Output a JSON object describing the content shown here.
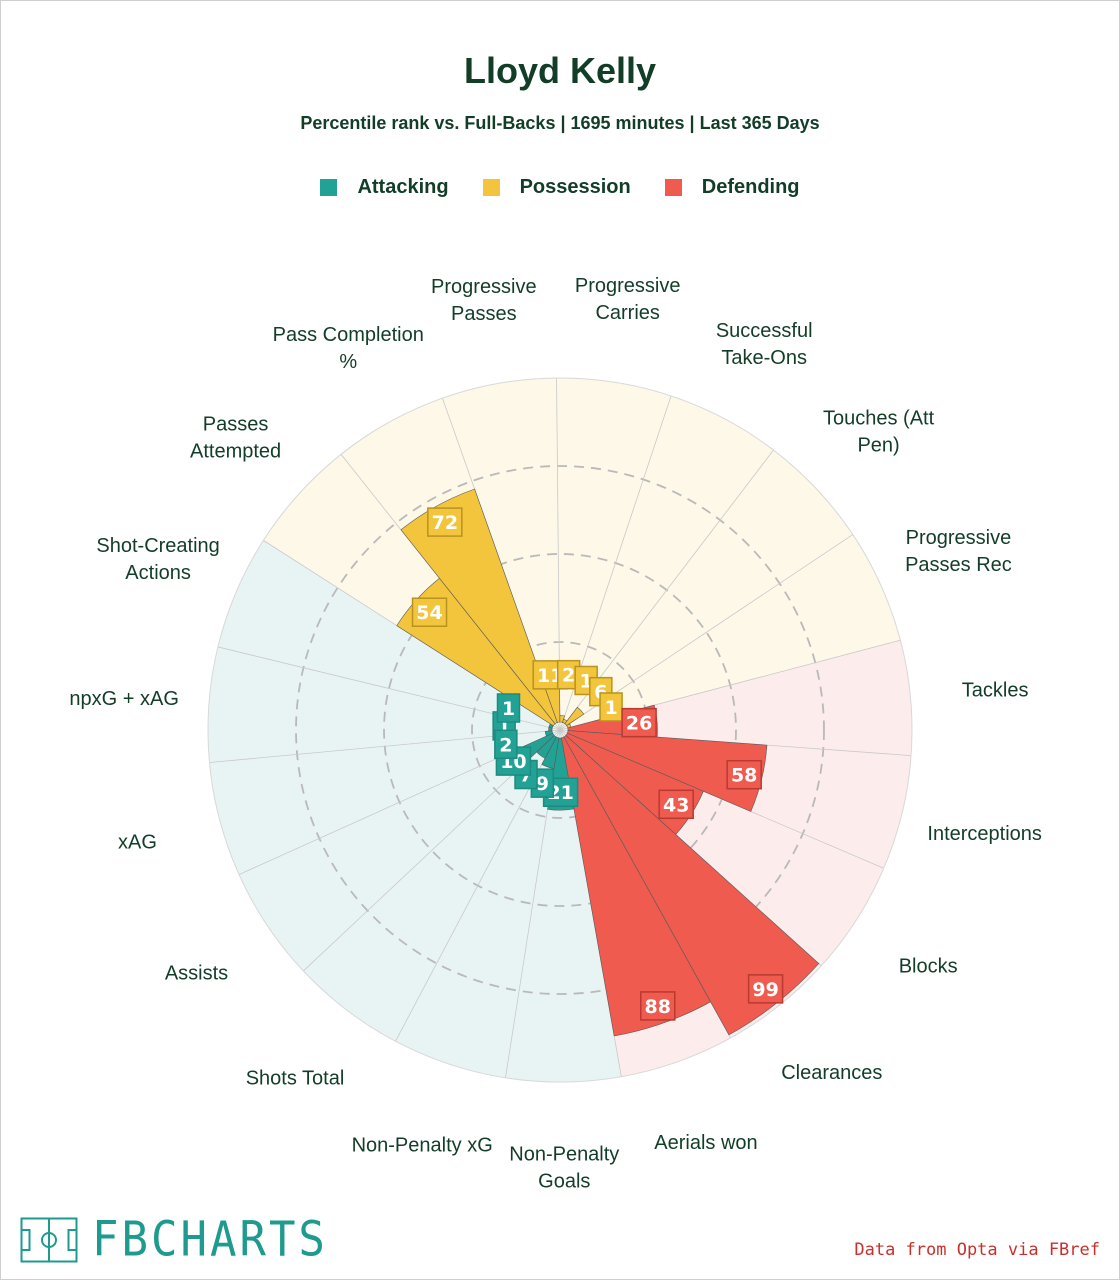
{
  "chart_data": {
    "type": "radar",
    "title": "Lloyd Kelly",
    "subtitle": "Percentile rank vs. Full-Backs | 1695 minutes | Last 365 Days",
    "legend": [
      {
        "name": "Attacking",
        "color": "#22a195"
      },
      {
        "name": "Possession",
        "color": "#f2c53d"
      },
      {
        "name": "Defending",
        "color": "#ef5b4f"
      }
    ],
    "range": [
      0,
      100
    ],
    "grid": true,
    "categories": [
      {
        "label": "npxG + xAG",
        "group": "Attacking",
        "value": 1
      },
      {
        "label": "Shot-Creating Actions",
        "group": "Attacking",
        "value": 1
      },
      {
        "label": "Passes Attempted",
        "group": "Possession",
        "value": 54
      },
      {
        "label": "Pass Completion %",
        "group": "Possession",
        "value": 72
      },
      {
        "label": "Progressive Passes",
        "group": "Possession",
        "value": 11
      },
      {
        "label": "Progressive Carries",
        "group": "Possession",
        "value": 2
      },
      {
        "label": "Successful Take-Ons",
        "group": "Possession",
        "value": 1
      },
      {
        "label": "Touches (Att Pen)",
        "group": "Possession",
        "value": 6
      },
      {
        "label": "Progressive Passes Rec",
        "group": "Possession",
        "value": 1
      },
      {
        "label": "Tackles",
        "group": "Defending",
        "value": 26
      },
      {
        "label": "Interceptions",
        "group": "Defending",
        "value": 58
      },
      {
        "label": "Blocks",
        "group": "Defending",
        "value": 43
      },
      {
        "label": "Clearances",
        "group": "Defending",
        "value": 99
      },
      {
        "label": "Aerials won",
        "group": "Defending",
        "value": 88
      },
      {
        "label": "Non-Penalty Goals",
        "group": "Attacking",
        "value": 21
      },
      {
        "label": "Non-Penalty xG",
        "group": "Attacking",
        "value": 9
      },
      {
        "label": "Shots Total",
        "group": "Attacking",
        "value": 7
      },
      {
        "label": "Assists",
        "group": "Attacking",
        "value": 10
      },
      {
        "label": "xAG",
        "group": "Attacking",
        "value": 2
      }
    ]
  },
  "branding": {
    "logo_text": "FBCHARTS",
    "credit": "Data from Opta via FBref"
  }
}
